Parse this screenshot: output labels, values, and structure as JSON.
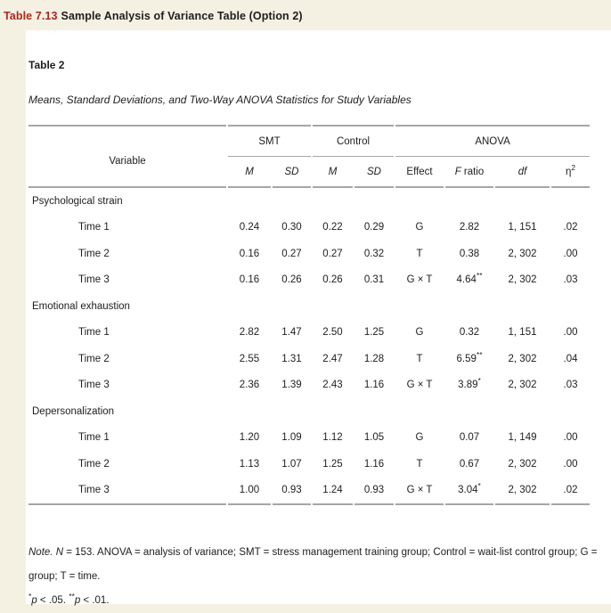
{
  "page": {
    "heading_number": "Table 7.13",
    "heading_title": "Sample Analysis of Variance Table (Option 2)"
  },
  "table": {
    "label": "Table 2",
    "caption": "Means, Standard Deviations, and Two-Way ANOVA Statistics for Study Variables",
    "col_headers": {
      "variable": "Variable",
      "smt": "SMT",
      "control": "Control",
      "anova": "ANOVA",
      "m1": "M",
      "sd1": "SD",
      "m2": "M",
      "sd2": "SD",
      "effect": "Effect",
      "f_symbol": "F",
      "f_rest": " ratio",
      "df": "df",
      "eta_symbol": "η",
      "eta_sup": "2"
    },
    "rows": [
      {
        "kind": "section",
        "label": "Psychological strain"
      },
      {
        "kind": "data",
        "label": "Time 1",
        "m1": "0.24",
        "sd1": "0.30",
        "m2": "0.22",
        "sd2": "0.29",
        "effect": "G",
        "f": "2.82",
        "f_star": "",
        "df": "1, 151",
        "eta": ".02"
      },
      {
        "kind": "data",
        "label": "Time 2",
        "m1": "0.16",
        "sd1": "0.27",
        "m2": "0.27",
        "sd2": "0.32",
        "effect": "T",
        "f": "0.38",
        "f_star": "",
        "df": "2, 302",
        "eta": ".00"
      },
      {
        "kind": "data",
        "label": "Time 3",
        "m1": "0.16",
        "sd1": "0.26",
        "m2": "0.26",
        "sd2": "0.31",
        "effect": "G × T",
        "f": "4.64",
        "f_star": "**",
        "df": "2, 302",
        "eta": ".03"
      },
      {
        "kind": "section",
        "label": "Emotional exhaustion"
      },
      {
        "kind": "data",
        "label": "Time 1",
        "m1": "2.82",
        "sd1": "1.47",
        "m2": "2.50",
        "sd2": "1.25",
        "effect": "G",
        "f": "0.32",
        "f_star": "",
        "df": "1, 151",
        "eta": ".00"
      },
      {
        "kind": "data",
        "label": "Time 2",
        "m1": "2.55",
        "sd1": "1.31",
        "m2": "2.47",
        "sd2": "1.28",
        "effect": "T",
        "f": "6.59",
        "f_star": "**",
        "df": "2, 302",
        "eta": ".04"
      },
      {
        "kind": "data",
        "label": "Time 3",
        "m1": "2.36",
        "sd1": "1.39",
        "m2": "2.43",
        "sd2": "1.16",
        "effect": "G × T",
        "f": "3.89",
        "f_star": "*",
        "df": "2, 302",
        "eta": ".03"
      },
      {
        "kind": "section",
        "label": "Depersonalization"
      },
      {
        "kind": "data",
        "label": "Time 1",
        "m1": "1.20",
        "sd1": "1.09",
        "m2": "1.12",
        "sd2": "1.05",
        "effect": "G",
        "f": "0.07",
        "f_star": "",
        "df": "1, 149",
        "eta": ".00"
      },
      {
        "kind": "data",
        "label": "Time 2",
        "m1": "1.13",
        "sd1": "1.07",
        "m2": "1.25",
        "sd2": "1.16",
        "effect": "T",
        "f": "0.67",
        "f_star": "",
        "df": "2, 302",
        "eta": ".00"
      },
      {
        "kind": "data",
        "label": "Time 3",
        "m1": "1.00",
        "sd1": "0.93",
        "m2": "1.24",
        "sd2": "0.93",
        "effect": "G × T",
        "f": "3.04",
        "f_star": "*",
        "df": "2, 302",
        "eta": ".02"
      }
    ]
  },
  "notes": {
    "note_label": "Note.",
    "n_symbol": " N",
    "line1_rest": " = 153. ANOVA = analysis of variance; SMT = stress management training group; Control = wait-list control group; G =",
    "line2": "group; T = time.",
    "sig_star1": "*",
    "sig_p1": "p",
    "sig_t1": " < .05. ",
    "sig_star2": "**",
    "sig_p2": "p",
    "sig_t2": " < .01."
  },
  "colors": {
    "accent_red": "#ae271f",
    "page_background": "#f4f1e3",
    "rule_gray": "#a6a6a6"
  }
}
